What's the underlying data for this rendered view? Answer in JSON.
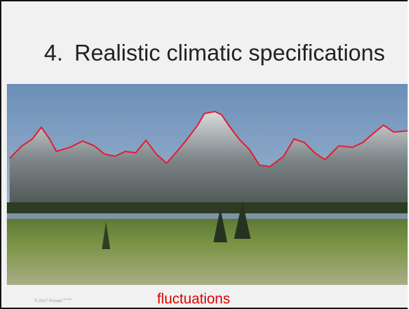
{
  "slide": {
    "number": "4.",
    "title": "Realistic climatic specifications",
    "copyright": "© 2017 Prevart",
    "copyright_suffix": "GmbH",
    "caption": "fluctuations"
  }
}
